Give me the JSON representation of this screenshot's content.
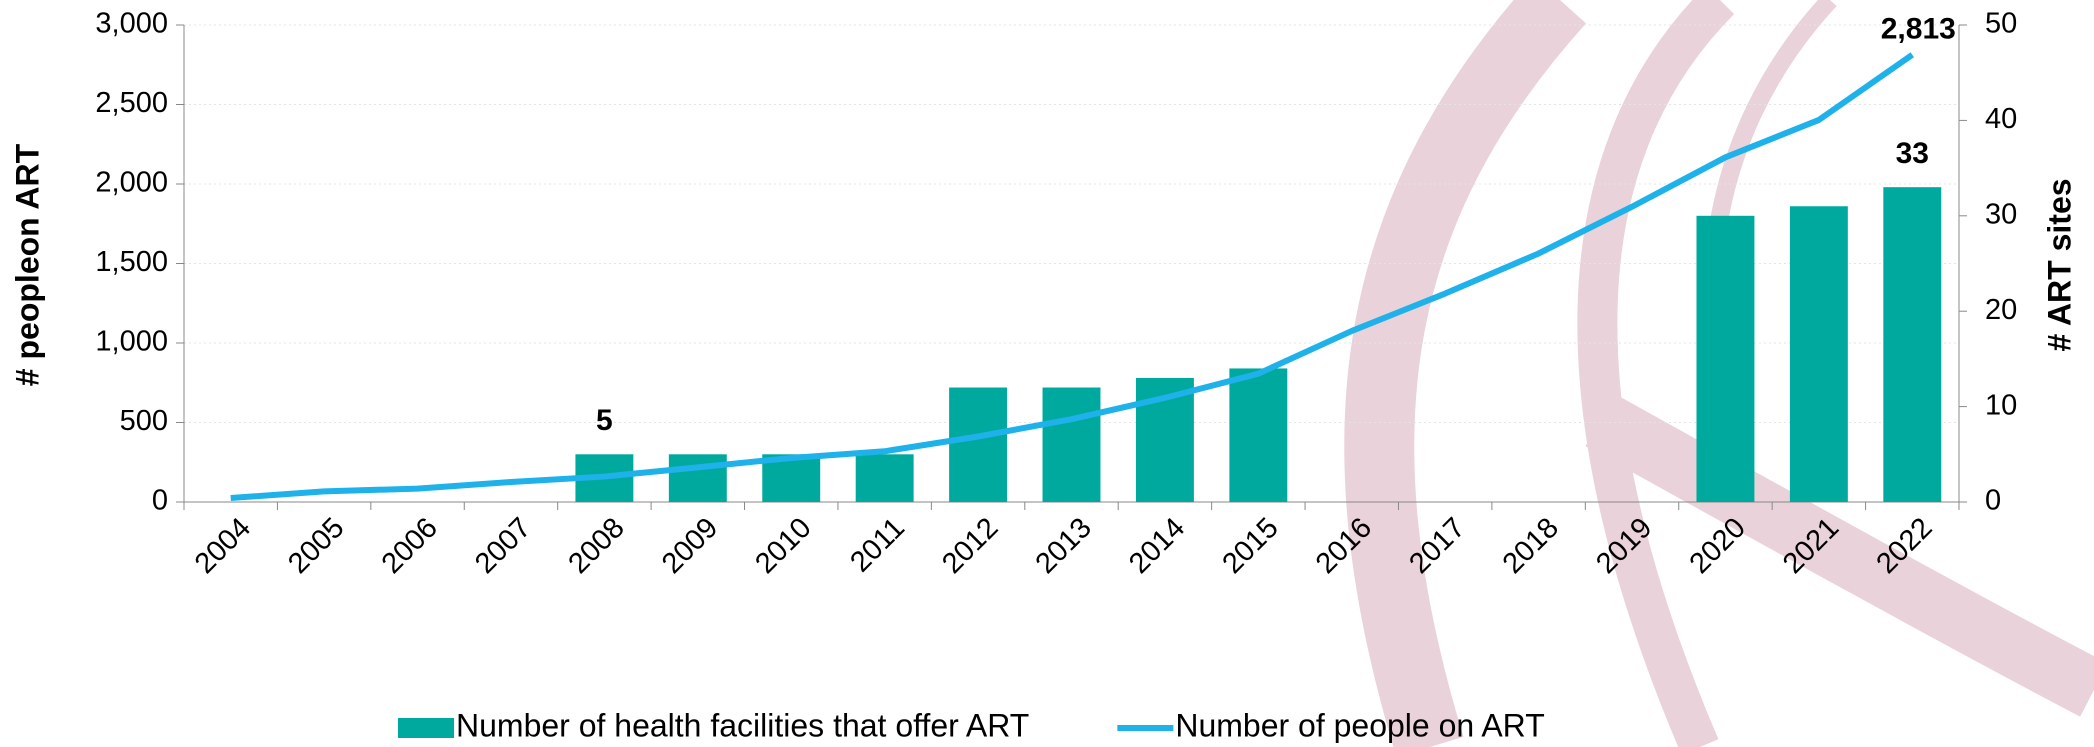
{
  "chart_data": {
    "type": "combo",
    "y_label": "# peopleon ART",
    "y2_label": "# ART sites",
    "categories": [
      "2004",
      "2005",
      "2006",
      "2007",
      "2008",
      "2009",
      "2010",
      "2011",
      "2012",
      "2013",
      "2014",
      "2015",
      "2016",
      "2017",
      "2018",
      "2019",
      "2020",
      "2021",
      "2022"
    ],
    "series": [
      {
        "name": "Number of health facilities that offer ART",
        "type": "bar",
        "axis": "y2",
        "color": "#00a99d",
        "values": [
          null,
          null,
          null,
          null,
          5,
          5,
          5,
          5,
          12,
          12,
          13,
          14,
          null,
          null,
          null,
          null,
          30,
          31,
          33
        ],
        "value_labels": [
          null,
          null,
          null,
          null,
          "5",
          null,
          null,
          null,
          null,
          null,
          null,
          null,
          null,
          null,
          null,
          null,
          null,
          null,
          "33"
        ]
      },
      {
        "name": "Number of people on ART",
        "type": "line",
        "color": "#1eb1ea",
        "values": [
          25,
          67,
          84,
          126,
          160,
          218,
          277,
          319,
          412,
          521,
          655,
          807,
          1076,
          1311,
          1563,
          1857,
          2168,
          2403,
          2813
        ],
        "value_labels": [
          null,
          null,
          null,
          null,
          null,
          null,
          null,
          null,
          null,
          null,
          null,
          null,
          null,
          null,
          null,
          null,
          null,
          null,
          "2,813"
        ]
      }
    ],
    "ylim": [
      0,
      3000
    ],
    "yticks": [
      0,
      500,
      {
        "value": 1000,
        "label": "1,000"
      },
      {
        "value": 1500,
        "label": "1,500"
      },
      {
        "value": 2000,
        "label": "2,000"
      },
      {
        "value": 2500,
        "label": "2,500"
      },
      {
        "value": 3000,
        "label": "3,000"
      }
    ],
    "y2lim": [
      0,
      50
    ],
    "y2ticks": [
      0,
      10,
      20,
      30,
      40,
      50
    ],
    "grid": true,
    "legend": "bottom"
  }
}
